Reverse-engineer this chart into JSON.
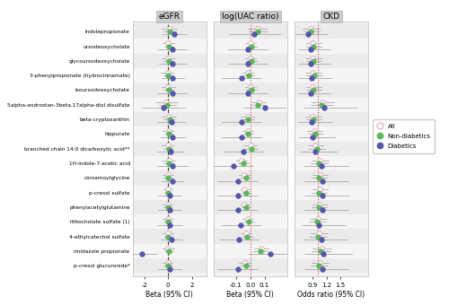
{
  "metabolites": [
    "indolepropionate",
    "ursodeoxycholate",
    "glycoursodeoxycholate",
    "3-phenylpropionate (hydrocinnamate)",
    "isoursodeoxycholate",
    "5alpha-androstan-3beta,17alpha-diol disulfate",
    "beta-cryptoxanthin",
    "hippurate",
    "branched chain 14:0 dicarboxylic acid**",
    "1H-indole-7-acetic acid",
    "cinnamoylglycine",
    "p-cresol sulfate",
    "phenylacetylglutamine",
    "lithocholate sulfate (1)",
    "4-ethylcatechol sulfate",
    "imidazole propionate",
    "p-cresol glucuronide*"
  ],
  "eGFR": {
    "xlim": [
      -3.0,
      3.2
    ],
    "xref": 0.0,
    "xticks": [
      -2,
      0,
      2
    ],
    "xlabel": "Beta (95% CI)",
    "all_est": [
      0.1,
      0.02,
      0.02,
      -0.02,
      0.02,
      -0.15,
      0.05,
      0.03,
      0.0,
      0.03,
      -0.03,
      -0.03,
      -0.05,
      -0.03,
      -0.03,
      0.0,
      -0.05
    ],
    "all_lo": [
      -0.55,
      -0.5,
      -0.55,
      -0.6,
      -0.55,
      -1.1,
      -0.55,
      -0.5,
      -0.52,
      -0.52,
      -0.48,
      -0.4,
      -0.5,
      -0.48,
      -0.48,
      -0.5,
      -0.48
    ],
    "all_hi": [
      0.75,
      0.55,
      0.58,
      0.55,
      0.58,
      0.8,
      0.65,
      0.55,
      0.52,
      0.58,
      0.42,
      0.34,
      0.4,
      0.42,
      0.42,
      0.5,
      0.38
    ],
    "nd_est": [
      0.15,
      0.05,
      0.05,
      -0.02,
      0.05,
      -0.08,
      0.1,
      0.07,
      0.03,
      0.06,
      -0.01,
      0.0,
      -0.02,
      0.0,
      0.0,
      0.04,
      -0.02
    ],
    "nd_lo": [
      -0.35,
      -0.32,
      -0.38,
      -0.42,
      -0.38,
      -0.8,
      -0.4,
      -0.32,
      -0.38,
      -0.4,
      -0.38,
      -0.3,
      -0.38,
      -0.38,
      -0.34,
      -0.34,
      -0.38
    ],
    "nd_hi": [
      0.65,
      0.42,
      0.48,
      0.38,
      0.48,
      0.64,
      0.6,
      0.46,
      0.44,
      0.52,
      0.36,
      0.3,
      0.34,
      0.38,
      0.34,
      0.42,
      0.34
    ],
    "d_est": [
      0.55,
      0.35,
      0.4,
      0.38,
      0.35,
      -0.4,
      0.3,
      0.4,
      0.22,
      0.38,
      0.35,
      0.15,
      0.15,
      0.15,
      0.3,
      -2.2,
      0.15
    ],
    "d_lo": [
      -0.5,
      -0.85,
      -0.8,
      -0.55,
      -0.9,
      -2.2,
      -0.9,
      -0.65,
      -0.9,
      -0.9,
      -0.55,
      -0.82,
      -0.82,
      -0.9,
      -0.62,
      -3.5,
      -0.82
    ],
    "d_hi": [
      1.6,
      1.55,
      1.6,
      1.31,
      1.6,
      1.4,
      1.5,
      1.45,
      1.34,
      1.66,
      1.25,
      1.12,
      1.12,
      1.2,
      1.22,
      -0.9,
      1.12
    ]
  },
  "uac": {
    "xlim": [
      -0.26,
      0.26
    ],
    "xref": 0.0,
    "xticks": [
      -0.1,
      0.0,
      0.1
    ],
    "xlabel": "Beta (95% CI)",
    "all_est": [
      0.05,
      0.002,
      0.002,
      -0.015,
      0.002,
      0.06,
      -0.02,
      -0.02,
      0.0,
      -0.06,
      -0.04,
      -0.04,
      -0.04,
      -0.02,
      -0.03,
      0.08,
      -0.038
    ],
    "all_lo": [
      -0.018,
      -0.038,
      -0.038,
      -0.058,
      -0.038,
      0.01,
      -0.068,
      -0.058,
      -0.048,
      -0.098,
      -0.078,
      -0.068,
      -0.068,
      -0.058,
      -0.068,
      0.03,
      -0.078
    ],
    "all_hi": [
      0.118,
      0.042,
      0.042,
      0.028,
      0.042,
      0.11,
      0.028,
      0.018,
      0.048,
      -0.022,
      0.0,
      0.0,
      0.0,
      0.018,
      0.008,
      0.13,
      0.002
    ],
    "nd_est": [
      0.055,
      0.008,
      0.008,
      -0.01,
      0.008,
      0.05,
      -0.015,
      -0.015,
      0.005,
      -0.05,
      -0.032,
      -0.032,
      -0.032,
      -0.012,
      -0.022,
      0.07,
      -0.03
    ],
    "nd_lo": [
      -0.012,
      -0.032,
      -0.032,
      -0.05,
      -0.032,
      0.0,
      -0.06,
      -0.05,
      -0.04,
      -0.09,
      -0.07,
      -0.062,
      -0.062,
      -0.052,
      -0.062,
      0.02,
      -0.07
    ],
    "nd_hi": [
      0.122,
      0.048,
      0.048,
      0.03,
      0.048,
      0.1,
      0.03,
      0.02,
      0.05,
      -0.01,
      0.006,
      0.0,
      0.0,
      0.028,
      0.018,
      0.12,
      0.01
    ],
    "d_est": [
      0.03,
      -0.02,
      -0.02,
      -0.06,
      -0.02,
      0.1,
      -0.06,
      -0.06,
      -0.05,
      -0.12,
      -0.09,
      -0.09,
      -0.09,
      -0.07,
      -0.08,
      0.14,
      -0.09
    ],
    "d_lo": [
      -0.15,
      -0.16,
      -0.16,
      -0.2,
      -0.16,
      -0.05,
      -0.2,
      -0.2,
      -0.19,
      -0.26,
      -0.23,
      -0.23,
      -0.23,
      -0.21,
      -0.22,
      -0.01,
      -0.23
    ],
    "d_hi": [
      0.21,
      0.12,
      0.12,
      0.08,
      0.12,
      0.25,
      0.08,
      0.08,
      0.09,
      0.02,
      0.05,
      0.05,
      0.05,
      0.07,
      0.06,
      0.29,
      0.05
    ]
  },
  "ckd": {
    "xlim": [
      0.5,
      2.1
    ],
    "xref": 1.0,
    "xticks": [
      0.9,
      1.2,
      1.5
    ],
    "xlabel": "Odds ratio (95% CI)",
    "all_est": [
      0.85,
      0.9,
      0.9,
      0.9,
      0.9,
      1.1,
      0.9,
      0.92,
      0.95,
      1.05,
      1.05,
      1.05,
      1.05,
      1.0,
      1.02,
      1.08,
      1.05
    ],
    "all_lo": [
      0.68,
      0.75,
      0.75,
      0.74,
      0.75,
      0.88,
      0.74,
      0.77,
      0.8,
      0.88,
      0.9,
      0.9,
      0.9,
      0.84,
      0.86,
      0.9,
      0.88
    ],
    "all_hi": [
      1.05,
      1.08,
      1.08,
      1.09,
      1.08,
      1.35,
      1.08,
      1.1,
      1.13,
      1.25,
      1.22,
      1.22,
      1.22,
      1.2,
      1.22,
      1.3,
      1.25
    ],
    "nd_est": [
      0.86,
      0.91,
      0.91,
      0.92,
      0.91,
      1.08,
      0.91,
      0.94,
      0.98,
      1.03,
      1.03,
      1.03,
      1.03,
      0.99,
      1.0,
      1.06,
      1.03
    ],
    "nd_lo": [
      0.7,
      0.76,
      0.76,
      0.76,
      0.76,
      0.86,
      0.76,
      0.79,
      0.82,
      0.86,
      0.88,
      0.88,
      0.88,
      0.82,
      0.84,
      0.88,
      0.86
    ],
    "nd_hi": [
      1.05,
      1.09,
      1.09,
      1.11,
      1.09,
      1.33,
      1.09,
      1.12,
      1.17,
      1.23,
      1.21,
      1.21,
      1.21,
      1.19,
      1.2,
      1.28,
      1.23
    ],
    "d_est": [
      0.8,
      0.86,
      0.86,
      0.88,
      0.86,
      1.14,
      0.88,
      0.9,
      0.94,
      1.08,
      1.1,
      1.1,
      1.1,
      1.03,
      1.08,
      1.13,
      1.1
    ],
    "d_lo": [
      0.52,
      0.58,
      0.58,
      0.6,
      0.58,
      0.7,
      0.58,
      0.6,
      0.62,
      0.7,
      0.72,
      0.72,
      0.72,
      0.65,
      0.7,
      0.72,
      0.72
    ],
    "d_hi": [
      1.22,
      1.28,
      1.28,
      1.3,
      1.28,
      1.85,
      1.32,
      1.38,
      1.42,
      1.68,
      1.68,
      1.68,
      1.68,
      1.62,
      1.65,
      1.75,
      1.68
    ]
  },
  "col_all": "#e8b4cc",
  "col_nd": "#5ab85a",
  "col_d": "#5555aa",
  "col_ref_egfr": "#222222",
  "col_ref_uac": "#cc3333",
  "col_ref_ckd": "#cc3333"
}
